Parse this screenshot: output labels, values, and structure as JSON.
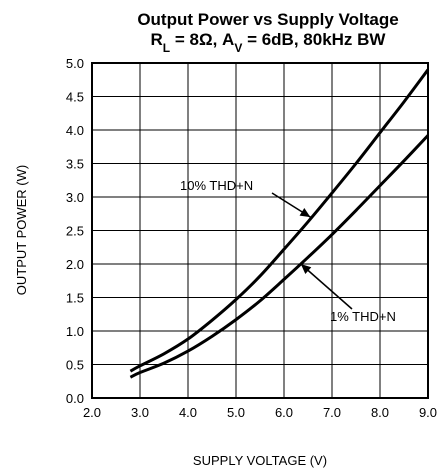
{
  "chart_data": {
    "type": "line",
    "title_line1": "Output Power vs Supply Voltage",
    "title_line2": {
      "r_main": "R",
      "r_sub": "L",
      "r_rest": " = 8Ω, A",
      "a_sub": "V",
      "a_rest": " = 6dB, 80kHz BW"
    },
    "xlabel": "SUPPLY VOLTAGE (V)",
    "ylabel": "OUTPUT POWER (W)",
    "xlim": [
      2.0,
      9.0
    ],
    "ylim": [
      0.0,
      5.0
    ],
    "x_ticks": [
      "2.0",
      "3.0",
      "4.0",
      "5.0",
      "6.0",
      "7.0",
      "8.0",
      "9.0"
    ],
    "y_ticks": [
      "0.0",
      "0.5",
      "1.0",
      "1.5",
      "2.0",
      "2.5",
      "3.0",
      "3.5",
      "4.0",
      "4.5",
      "5.0"
    ],
    "grid": true,
    "line_color": "#000000",
    "series": [
      {
        "name": "10% THD+N",
        "x": [
          2.8,
          3.0,
          3.5,
          4.0,
          4.5,
          5.0,
          5.5,
          6.0,
          6.5,
          7.0,
          7.5,
          8.0,
          8.5,
          9.0
        ],
        "y": [
          0.4,
          0.48,
          0.66,
          0.88,
          1.16,
          1.47,
          1.82,
          2.22,
          2.63,
          3.06,
          3.5,
          3.96,
          4.42,
          4.9
        ]
      },
      {
        "name": "1% THD+N",
        "x": [
          2.8,
          3.0,
          3.5,
          4.0,
          4.5,
          5.0,
          5.5,
          6.0,
          6.5,
          7.0,
          7.5,
          8.0,
          8.5,
          9.0
        ],
        "y": [
          0.31,
          0.38,
          0.52,
          0.7,
          0.92,
          1.17,
          1.45,
          1.77,
          2.1,
          2.44,
          2.8,
          3.17,
          3.54,
          3.92
        ]
      }
    ],
    "annotations": [
      {
        "text": "10% THD+N",
        "series": 0,
        "arrow_to": [
          6.55,
          2.7
        ]
      },
      {
        "text": "1% THD+N",
        "series": 1,
        "arrow_to": [
          6.35,
          2.0
        ]
      }
    ]
  }
}
